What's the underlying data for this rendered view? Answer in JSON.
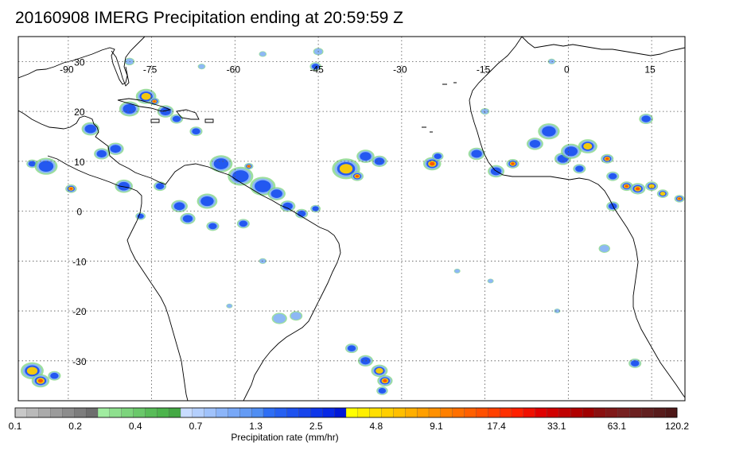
{
  "title": "20160908 IMERG Precipitation ending at 20:59:59 Z",
  "map": {
    "lon_range": [
      -99,
      21
    ],
    "lat_range": [
      -38,
      35
    ],
    "lon_ticks": [
      -90,
      -75,
      -60,
      -45,
      -30,
      -15,
      0,
      15
    ],
    "lat_ticks": [
      30,
      20,
      10,
      0,
      -10,
      -20,
      -30
    ],
    "lon_labels": [
      "-90",
      "-75",
      "-60",
      "-45",
      "-30",
      "-15",
      "0",
      "15"
    ],
    "lat_labels": [
      "30",
      "20",
      "10",
      "0",
      "-10",
      "-20",
      "-30"
    ],
    "grid": true,
    "coastline_color": "#000000",
    "grid_color": "#555555"
  },
  "colorbar": {
    "label": "Precipitation rate (mm/hr)",
    "tick_labels": [
      "0.1",
      "0.2",
      "0.4",
      "0.7",
      "1.3",
      "2.5",
      "4.8",
      "9.1",
      "17.4",
      "33.1",
      "63.1",
      "120.2"
    ],
    "groups": [
      [
        "#c8c8c8",
        "#b9b9b9",
        "#aaaaaa",
        "#9b9b9b",
        "#8c8c8c",
        "#7d7d7d",
        "#6e6e6e"
      ],
      [
        "#a0eca0",
        "#8ee08e",
        "#7cd47c",
        "#6ac86a",
        "#58bc58",
        "#4cb44c",
        "#44a844"
      ],
      [
        "#c8dcff",
        "#b4cffd",
        "#a0c2fb",
        "#8cb5f9",
        "#78a8f7",
        "#649bf5",
        "#508ef3"
      ],
      [
        "#2e6ef5",
        "#2660f2",
        "#1e52ef",
        "#1644ec",
        "#0e36e9",
        "#0728e6",
        "#0018d8"
      ],
      [
        "#ffff00",
        "#ffef00",
        "#ffdf00",
        "#ffcf00",
        "#ffbf00",
        "#ffaf00",
        "#ff9f00"
      ],
      [
        "#ff9000",
        "#ff8000",
        "#ff7000",
        "#ff6000",
        "#ff5000",
        "#ff4000",
        "#ff3000"
      ],
      [
        "#ff2000",
        "#f01000",
        "#e00000",
        "#d00000",
        "#c00000",
        "#b00000",
        "#a00000"
      ],
      [
        "#8a1010",
        "#801818",
        "#762020",
        "#6c2020",
        "#622020",
        "#581c1c",
        "#4e1818"
      ]
    ]
  },
  "precip_cells": [
    {
      "lon": -96.5,
      "lat": 9.5,
      "r": 0.9,
      "level": 2
    },
    {
      "lon": -94.0,
      "lat": 9.0,
      "r": 1.8,
      "level": 2
    },
    {
      "lon": -89.5,
      "lat": 4.5,
      "r": 0.9,
      "level": 4
    },
    {
      "lon": -86.0,
      "lat": 16.5,
      "r": 1.4,
      "level": 2
    },
    {
      "lon": -84.0,
      "lat": 11.5,
      "r": 1.2,
      "level": 2
    },
    {
      "lon": -81.5,
      "lat": 12.5,
      "r": 1.3,
      "level": 2
    },
    {
      "lon": -80.0,
      "lat": 5.0,
      "r": 1.4,
      "level": 2
    },
    {
      "lon": -79.0,
      "lat": 20.5,
      "r": 1.6,
      "level": 2
    },
    {
      "lon": -76.0,
      "lat": 23.0,
      "r": 1.6,
      "level": 3
    },
    {
      "lon": -74.5,
      "lat": 22.0,
      "r": 0.8,
      "level": 4
    },
    {
      "lon": -72.5,
      "lat": 20.0,
      "r": 1.3,
      "level": 2
    },
    {
      "lon": -70.5,
      "lat": 18.5,
      "r": 1.0,
      "level": 2
    },
    {
      "lon": -67.0,
      "lat": 16.0,
      "r": 1.0,
      "level": 2
    },
    {
      "lon": -62.5,
      "lat": 9.5,
      "r": 1.8,
      "level": 2
    },
    {
      "lon": -59.0,
      "lat": 7.0,
      "r": 2.0,
      "level": 2
    },
    {
      "lon": -57.5,
      "lat": 9.0,
      "r": 0.7,
      "level": 4
    },
    {
      "lon": -55.0,
      "lat": 5.0,
      "r": 2.0,
      "level": 2
    },
    {
      "lon": -52.5,
      "lat": 3.5,
      "r": 1.4,
      "level": 2
    },
    {
      "lon": -50.5,
      "lat": 1.0,
      "r": 1.2,
      "level": 2
    },
    {
      "lon": -48.0,
      "lat": -0.5,
      "r": 1.0,
      "level": 2
    },
    {
      "lon": -45.5,
      "lat": 0.5,
      "r": 0.8,
      "level": 2
    },
    {
      "lon": -45.5,
      "lat": 29.0,
      "r": 0.9,
      "level": 2
    },
    {
      "lon": -65.0,
      "lat": 2.0,
      "r": 1.6,
      "level": 2
    },
    {
      "lon": -70.0,
      "lat": 1.0,
      "r": 1.3,
      "level": 2
    },
    {
      "lon": -73.5,
      "lat": 5.0,
      "r": 1.0,
      "level": 2
    },
    {
      "lon": -68.5,
      "lat": -1.5,
      "r": 1.2,
      "level": 2
    },
    {
      "lon": -64.0,
      "lat": -3.0,
      "r": 1.0,
      "level": 2
    },
    {
      "lon": -58.5,
      "lat": -2.5,
      "r": 1.0,
      "level": 2
    },
    {
      "lon": -77.0,
      "lat": -1.0,
      "r": 0.8,
      "level": 2
    },
    {
      "lon": -40.0,
      "lat": 8.5,
      "r": 2.2,
      "level": 3
    },
    {
      "lon": -38.0,
      "lat": 7.0,
      "r": 1.0,
      "level": 4
    },
    {
      "lon": -36.5,
      "lat": 11.0,
      "r": 1.4,
      "level": 2
    },
    {
      "lon": -34.0,
      "lat": 10.0,
      "r": 1.2,
      "level": 2
    },
    {
      "lon": -24.5,
      "lat": 9.5,
      "r": 1.4,
      "level": 4
    },
    {
      "lon": -23.5,
      "lat": 11.0,
      "r": 0.9,
      "level": 2
    },
    {
      "lon": -16.5,
      "lat": 11.5,
      "r": 1.3,
      "level": 2
    },
    {
      "lon": -13.0,
      "lat": 8.0,
      "r": 1.3,
      "level": 2
    },
    {
      "lon": -10.0,
      "lat": 9.5,
      "r": 1.0,
      "level": 4
    },
    {
      "lon": -6.0,
      "lat": 13.5,
      "r": 1.3,
      "level": 2
    },
    {
      "lon": -3.5,
      "lat": 16.0,
      "r": 1.7,
      "level": 2
    },
    {
      "lon": -1.0,
      "lat": 10.5,
      "r": 1.3,
      "level": 2
    },
    {
      "lon": 0.5,
      "lat": 12.0,
      "r": 1.6,
      "level": 2
    },
    {
      "lon": 3.5,
      "lat": 13.0,
      "r": 1.5,
      "level": 3
    },
    {
      "lon": 2.0,
      "lat": 8.5,
      "r": 1.0,
      "level": 2
    },
    {
      "lon": 7.0,
      "lat": 10.5,
      "r": 1.0,
      "level": 4
    },
    {
      "lon": 8.0,
      "lat": 7.0,
      "r": 1.0,
      "level": 2
    },
    {
      "lon": 10.5,
      "lat": 5.0,
      "r": 1.0,
      "level": 5
    },
    {
      "lon": 12.5,
      "lat": 4.5,
      "r": 1.2,
      "level": 4
    },
    {
      "lon": 15.0,
      "lat": 5.0,
      "r": 1.0,
      "level": 3
    },
    {
      "lon": 17.0,
      "lat": 3.5,
      "r": 0.9,
      "level": 3
    },
    {
      "lon": 20.0,
      "lat": 2.5,
      "r": 0.8,
      "level": 4
    },
    {
      "lon": 8.0,
      "lat": 1.0,
      "r": 1.0,
      "level": 2
    },
    {
      "lon": 14.0,
      "lat": 18.5,
      "r": 1.1,
      "level": 2
    },
    {
      "lon": 6.5,
      "lat": -7.5,
      "r": 0.9,
      "level": 1
    },
    {
      "lon": 12.0,
      "lat": -30.5,
      "r": 1.0,
      "level": 2
    },
    {
      "lon": -39.0,
      "lat": -27.5,
      "r": 1.0,
      "level": 2
    },
    {
      "lon": -36.5,
      "lat": -30.0,
      "r": 1.2,
      "level": 2
    },
    {
      "lon": -34.0,
      "lat": -32.0,
      "r": 1.3,
      "level": 3
    },
    {
      "lon": -33.0,
      "lat": -34.0,
      "r": 1.2,
      "level": 4
    },
    {
      "lon": -33.5,
      "lat": -36.0,
      "r": 0.9,
      "level": 2
    },
    {
      "lon": -96.5,
      "lat": -32.0,
      "r": 1.8,
      "level": 3
    },
    {
      "lon": -95.0,
      "lat": -34.0,
      "r": 1.4,
      "level": 4
    },
    {
      "lon": -92.5,
      "lat": -33.0,
      "r": 1.0,
      "level": 2
    },
    {
      "lon": -52.0,
      "lat": -21.5,
      "r": 1.2,
      "level": 1
    },
    {
      "lon": -49.0,
      "lat": -21.0,
      "r": 1.0,
      "level": 1
    },
    {
      "lon": -45.0,
      "lat": 32.0,
      "r": 0.8,
      "level": 1
    },
    {
      "lon": -79.0,
      "lat": 30.0,
      "r": 0.8,
      "level": 1
    },
    {
      "lon": -66.0,
      "lat": 29.0,
      "r": 0.6,
      "level": 1
    },
    {
      "lon": -55.0,
      "lat": 31.5,
      "r": 0.6,
      "level": 1
    },
    {
      "lon": -3.0,
      "lat": 30.0,
      "r": 0.6,
      "level": 1
    },
    {
      "lon": -15.0,
      "lat": 20.0,
      "r": 0.7,
      "level": 1
    },
    {
      "lon": -20.0,
      "lat": -12.0,
      "r": 0.5,
      "level": 1
    },
    {
      "lon": -14.0,
      "lat": -14.0,
      "r": 0.5,
      "level": 1
    },
    {
      "lon": -2.0,
      "lat": -20.0,
      "r": 0.5,
      "level": 1
    },
    {
      "lon": -55.0,
      "lat": -10.0,
      "r": 0.6,
      "level": 1
    },
    {
      "lon": -61.0,
      "lat": -19.0,
      "r": 0.5,
      "level": 1
    }
  ]
}
